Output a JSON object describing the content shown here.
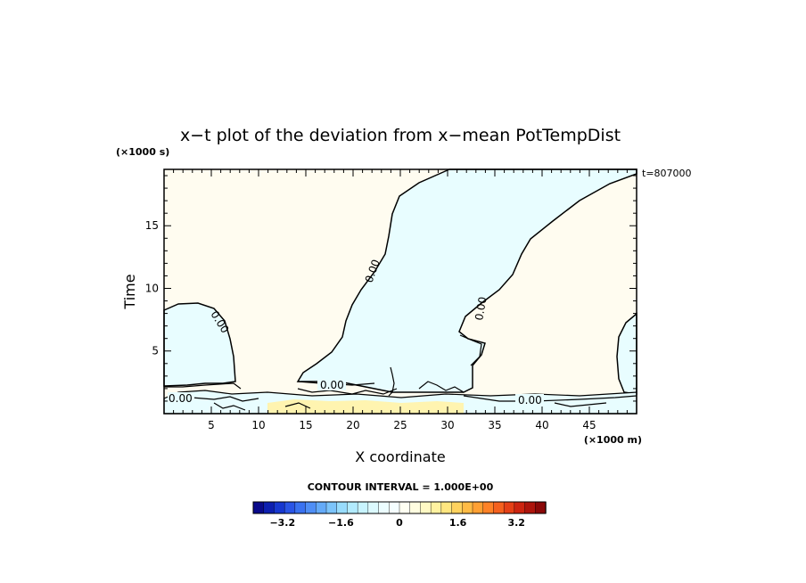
{
  "chart_data": {
    "type": "contour",
    "title": "x−t plot of the deviation from x−mean PotTempDist",
    "xlabel": "X coordinate",
    "ylabel": "Time",
    "x_unit": "(×1000 m)",
    "y_unit": "(×1000 s)",
    "time_label": "t=807000",
    "xlim": [
      0,
      50
    ],
    "ylim": [
      0,
      19.5
    ],
    "x_ticks": [
      5,
      10,
      15,
      20,
      25,
      30,
      35,
      40,
      45
    ],
    "y_ticks": [
      5,
      10,
      15
    ],
    "contour_labels": [
      "0.00",
      "0.00",
      "0.00",
      "0.00",
      "0.00",
      "0.00"
    ],
    "contour_interval_text": "CONTOUR INTERVAL = 1.000E+00",
    "colorbar": {
      "min": -4,
      "max": 4,
      "ticks": [
        "−3.2",
        "−1.6",
        "0",
        "1.6",
        "3.2"
      ],
      "colors": [
        "#0a0a8a",
        "#0d1fb0",
        "#1738d0",
        "#2a55e6",
        "#3a72f0",
        "#4f8ef5",
        "#64aaf8",
        "#7cc4fb",
        "#98dcfd",
        "#b2ebfe",
        "#c8f4ff",
        "#dcfaff",
        "#ecfdff",
        "#f5feff",
        "#fffff2",
        "#fffde0",
        "#fff9c4",
        "#fff2a0",
        "#ffe680",
        "#ffd25e",
        "#ffbb45",
        "#ffa033",
        "#ff8227",
        "#f5611e",
        "#e54016",
        "#cc2410",
        "#ad140c",
        "#8a0808"
      ]
    },
    "regions": {
      "cyan_fill": "#e8fdff",
      "cream_fill": "#fffcf0",
      "yellow_fill": "#fff4b0"
    }
  }
}
